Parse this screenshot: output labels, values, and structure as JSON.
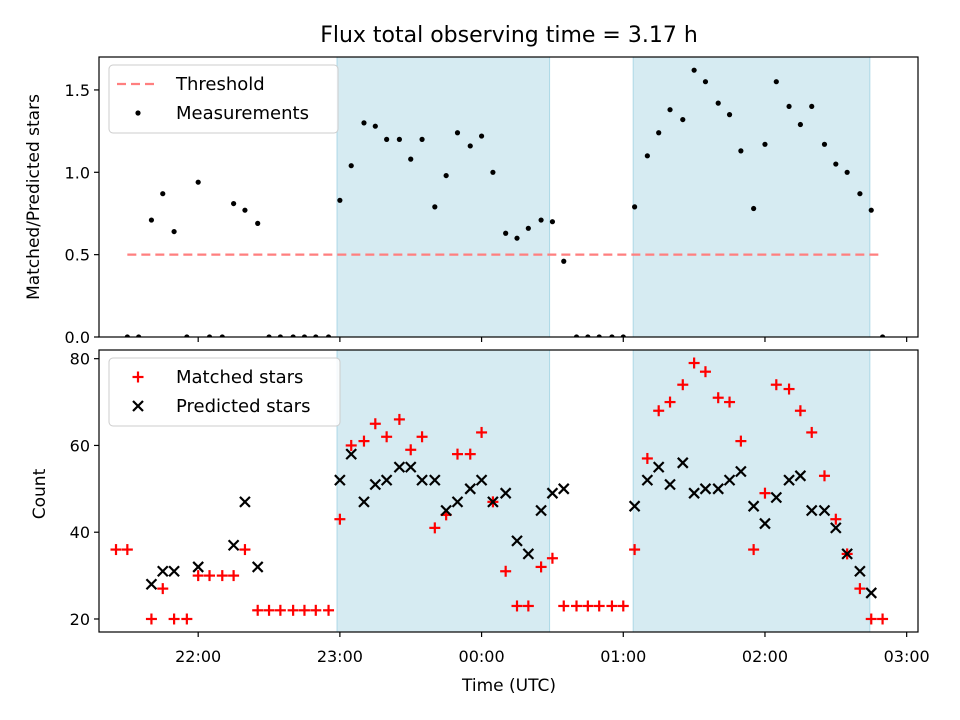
{
  "chart_data": {
    "title": "Flux total observing time = 3.17 h",
    "x_unit": "hours UTC; values of 24 and above are after midnight of the following day",
    "xlabel": "Time (UTC)",
    "x_ticks": [
      {
        "value": 22,
        "label": "22:00"
      },
      {
        "value": 23,
        "label": "23:00"
      },
      {
        "value": 24,
        "label": "00:00"
      },
      {
        "value": 25,
        "label": "01:00"
      },
      {
        "value": 26,
        "label": "02:00"
      },
      {
        "value": 27,
        "label": "03:00"
      }
    ],
    "xlim": [
      21.3,
      27.08
    ],
    "shaded_intervals": [
      [
        22.98,
        24.48
      ],
      [
        25.07,
        26.74
      ]
    ],
    "shade_color": "#add8e6",
    "panels": [
      {
        "type": "scatter",
        "ylabel": "Matched/Predicted stars",
        "ylim": [
          0,
          1.7
        ],
        "y_ticks": [
          0.0,
          0.5,
          1.0,
          1.5
        ],
        "y_tick_labels": [
          "0.0",
          "0.5",
          "1.0",
          "1.5"
        ],
        "legend_position": "upper-left",
        "series": [
          {
            "name": "Threshold",
            "type": "line",
            "style": "dashed",
            "color": "#ff7f7f",
            "x": [
              21.5,
              26.82
            ],
            "y": [
              0.5,
              0.5
            ]
          },
          {
            "name": "Measurements",
            "type": "scatter",
            "marker": "dot",
            "color": "#000000",
            "x": [
              21.5,
              21.58,
              21.67,
              21.75,
              21.83,
              21.92,
              22.0,
              22.08,
              22.17,
              22.25,
              22.33,
              22.42,
              22.5,
              22.58,
              22.67,
              22.75,
              22.83,
              22.92,
              23.0,
              23.08,
              23.17,
              23.25,
              23.33,
              23.42,
              23.5,
              23.58,
              23.67,
              23.75,
              23.83,
              23.92,
              24.0,
              24.08,
              24.17,
              24.25,
              24.33,
              24.42,
              24.5,
              24.58,
              24.67,
              24.75,
              24.83,
              24.92,
              25.0,
              25.08,
              25.17,
              25.25,
              25.33,
              25.42,
              25.5,
              25.58,
              25.67,
              25.75,
              25.83,
              25.92,
              26.0,
              26.08,
              26.17,
              26.25,
              26.33,
              26.42,
              26.5,
              26.58,
              26.67,
              26.75,
              26.83
            ],
            "y": [
              0.0,
              0.0,
              0.71,
              0.87,
              0.64,
              0.0,
              0.94,
              0.0,
              0.0,
              0.81,
              0.77,
              0.69,
              0.0,
              0.0,
              0.0,
              0.0,
              0.0,
              0.0,
              0.83,
              1.04,
              1.3,
              1.28,
              1.2,
              1.2,
              1.08,
              1.2,
              0.79,
              0.98,
              1.24,
              1.16,
              1.22,
              1.0,
              0.63,
              0.6,
              0.66,
              0.71,
              0.7,
              0.46,
              0.0,
              0.0,
              0.0,
              0.0,
              0.0,
              0.79,
              1.1,
              1.24,
              1.38,
              1.32,
              1.62,
              1.55,
              1.42,
              1.35,
              1.13,
              0.78,
              1.17,
              1.55,
              1.4,
              1.29,
              1.4,
              1.17,
              1.05,
              1.0,
              0.87,
              0.77,
              0.0
            ]
          }
        ]
      },
      {
        "type": "scatter",
        "ylabel": "Count",
        "ylim": [
          17,
          82
        ],
        "y_ticks": [
          20,
          40,
          60,
          80
        ],
        "y_tick_labels": [
          "20",
          "40",
          "60",
          "80"
        ],
        "legend_position": "upper-left",
        "series": [
          {
            "name": "Matched stars",
            "marker": "plus",
            "color": "#ff0000",
            "x": [
              21.42,
              21.5,
              21.67,
              21.75,
              21.83,
              21.92,
              22.0,
              22.08,
              22.17,
              22.25,
              22.33,
              22.42,
              22.5,
              22.58,
              22.67,
              22.75,
              22.83,
              22.92,
              23.0,
              23.08,
              23.17,
              23.25,
              23.33,
              23.42,
              23.5,
              23.58,
              23.67,
              23.75,
              23.83,
              23.92,
              24.0,
              24.08,
              24.17,
              24.25,
              24.33,
              24.42,
              24.5,
              24.58,
              24.67,
              24.75,
              24.83,
              24.92,
              25.0,
              25.08,
              25.17,
              25.25,
              25.33,
              25.42,
              25.5,
              25.58,
              25.67,
              25.75,
              25.83,
              25.92,
              26.0,
              26.08,
              26.17,
              26.25,
              26.33,
              26.42,
              26.5,
              26.58,
              26.67,
              26.75,
              26.83
            ],
            "y": [
              36,
              36,
              20,
              27,
              20,
              20,
              30,
              30,
              30,
              30,
              36,
              22,
              22,
              22,
              22,
              22,
              22,
              22,
              43,
              60,
              61,
              65,
              62,
              66,
              59,
              62,
              41,
              44,
              58,
              58,
              63,
              47,
              31,
              23,
              23,
              32,
              34,
              23,
              23,
              23,
              23,
              23,
              23,
              36,
              57,
              68,
              70,
              74,
              79,
              77,
              71,
              70,
              61,
              36,
              49,
              74,
              73,
              68,
              63,
              53,
              43,
              35,
              27,
              20,
              20
            ]
          },
          {
            "name": "Predicted stars",
            "marker": "x",
            "color": "#000000",
            "x": [
              21.67,
              21.75,
              21.83,
              22.0,
              22.25,
              22.33,
              22.42,
              23.0,
              23.08,
              23.17,
              23.25,
              23.33,
              23.42,
              23.5,
              23.58,
              23.67,
              23.75,
              23.83,
              23.92,
              24.0,
              24.08,
              24.17,
              24.25,
              24.33,
              24.42,
              24.5,
              24.58,
              25.08,
              25.17,
              25.25,
              25.33,
              25.42,
              25.5,
              25.58,
              25.67,
              25.75,
              25.83,
              25.92,
              26.0,
              26.08,
              26.17,
              26.25,
              26.33,
              26.42,
              26.5,
              26.58,
              26.67,
              26.75
            ],
            "y": [
              28,
              31,
              31,
              32,
              37,
              47,
              32,
              52,
              58,
              47,
              51,
              52,
              55,
              55,
              52,
              52,
              45,
              47,
              50,
              52,
              47,
              49,
              38,
              35,
              45,
              49,
              50,
              46,
              52,
              55,
              51,
              56,
              49,
              50,
              50,
              52,
              54,
              46,
              42,
              48,
              52,
              53,
              45,
              45,
              41,
              35,
              31,
              26
            ]
          }
        ]
      }
    ]
  }
}
